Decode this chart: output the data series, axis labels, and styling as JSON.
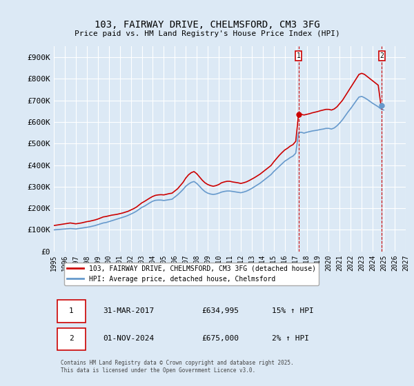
{
  "title": "103, FAIRWAY DRIVE, CHELMSFORD, CM3 3FG",
  "subtitle": "Price paid vs. HM Land Registry's House Price Index (HPI)",
  "background_color": "#dce9f5",
  "plot_bg_color": "#dce9f5",
  "grid_color": "#ffffff",
  "ylabel": "",
  "ylim": [
    0,
    950000
  ],
  "yticks": [
    0,
    100000,
    200000,
    300000,
    400000,
    500000,
    600000,
    700000,
    800000,
    900000
  ],
  "ytick_labels": [
    "£0",
    "£100K",
    "£200K",
    "£300K",
    "£400K",
    "£500K",
    "£600K",
    "£700K",
    "£800K",
    "£900K"
  ],
  "xlim_start": 1995.0,
  "xlim_end": 2027.0,
  "xticks": [
    1995,
    1996,
    1997,
    1998,
    1999,
    2000,
    2001,
    2002,
    2003,
    2004,
    2005,
    2006,
    2007,
    2008,
    2009,
    2010,
    2011,
    2012,
    2013,
    2014,
    2015,
    2016,
    2017,
    2018,
    2019,
    2020,
    2021,
    2022,
    2023,
    2024,
    2025,
    2026,
    2027
  ],
  "red_color": "#cc0000",
  "blue_color": "#6699cc",
  "marker1_year": 2017.25,
  "marker1_value": 634995,
  "marker1_label": "1",
  "marker2_year": 2024.83,
  "marker2_value": 675000,
  "marker2_label": "2",
  "legend1_text": "103, FAIRWAY DRIVE, CHELMSFORD, CM3 3FG (detached house)",
  "legend2_text": "HPI: Average price, detached house, Chelmsford",
  "table_row1": [
    "1",
    "31-MAR-2017",
    "£634,995",
    "15% ↑ HPI"
  ],
  "table_row2": [
    "2",
    "01-NOV-2024",
    "£675,000",
    "2% ↑ HPI"
  ],
  "footer": "Contains HM Land Registry data © Crown copyright and database right 2025.\nThis data is licensed under the Open Government Licence v3.0.",
  "red_x": [
    1995.0,
    1995.25,
    1995.5,
    1995.75,
    1996.0,
    1996.25,
    1996.5,
    1996.75,
    1997.0,
    1997.25,
    1997.5,
    1997.75,
    1998.0,
    1998.25,
    1998.5,
    1998.75,
    1999.0,
    1999.25,
    1999.5,
    1999.75,
    2000.0,
    2000.25,
    2000.5,
    2000.75,
    2001.0,
    2001.25,
    2001.5,
    2001.75,
    2002.0,
    2002.25,
    2002.5,
    2002.75,
    2003.0,
    2003.25,
    2003.5,
    2003.75,
    2004.0,
    2004.25,
    2004.5,
    2004.75,
    2005.0,
    2005.25,
    2005.5,
    2005.75,
    2006.0,
    2006.25,
    2006.5,
    2006.75,
    2007.0,
    2007.25,
    2007.5,
    2007.75,
    2008.0,
    2008.25,
    2008.5,
    2008.75,
    2009.0,
    2009.25,
    2009.5,
    2009.75,
    2010.0,
    2010.25,
    2010.5,
    2010.75,
    2011.0,
    2011.25,
    2011.5,
    2011.75,
    2012.0,
    2012.25,
    2012.5,
    2012.75,
    2013.0,
    2013.25,
    2013.5,
    2013.75,
    2014.0,
    2014.25,
    2014.5,
    2014.75,
    2015.0,
    2015.25,
    2015.5,
    2015.75,
    2016.0,
    2016.25,
    2016.5,
    2016.75,
    2017.0,
    2017.25,
    2017.5,
    2017.75,
    2018.0,
    2018.25,
    2018.5,
    2018.75,
    2019.0,
    2019.25,
    2019.5,
    2019.75,
    2020.0,
    2020.25,
    2020.5,
    2020.75,
    2021.0,
    2021.25,
    2021.5,
    2021.75,
    2022.0,
    2022.25,
    2022.5,
    2022.75,
    2023.0,
    2023.25,
    2023.5,
    2023.75,
    2024.0,
    2024.25,
    2024.5,
    2024.75,
    2025.0
  ],
  "red_y": [
    120000,
    122000,
    124000,
    126000,
    128000,
    130000,
    132000,
    130000,
    128000,
    130000,
    132000,
    135000,
    138000,
    140000,
    143000,
    146000,
    150000,
    155000,
    160000,
    162000,
    165000,
    168000,
    170000,
    172000,
    175000,
    178000,
    182000,
    186000,
    192000,
    198000,
    205000,
    215000,
    225000,
    232000,
    240000,
    248000,
    255000,
    260000,
    262000,
    263000,
    262000,
    265000,
    268000,
    270000,
    280000,
    290000,
    305000,
    320000,
    340000,
    355000,
    365000,
    370000,
    360000,
    345000,
    330000,
    318000,
    310000,
    305000,
    302000,
    305000,
    310000,
    318000,
    322000,
    325000,
    325000,
    322000,
    320000,
    318000,
    315000,
    318000,
    322000,
    328000,
    335000,
    342000,
    350000,
    358000,
    368000,
    378000,
    388000,
    398000,
    415000,
    430000,
    445000,
    458000,
    470000,
    478000,
    488000,
    495000,
    510000,
    634995,
    635000,
    632000,
    635000,
    638000,
    642000,
    645000,
    648000,
    652000,
    655000,
    658000,
    658000,
    655000,
    660000,
    670000,
    685000,
    700000,
    720000,
    740000,
    760000,
    780000,
    800000,
    820000,
    825000,
    820000,
    810000,
    800000,
    790000,
    780000,
    770000,
    675000,
    670000
  ],
  "blue_x": [
    1995.0,
    1995.25,
    1995.5,
    1995.75,
    1996.0,
    1996.25,
    1996.5,
    1996.75,
    1997.0,
    1997.25,
    1997.5,
    1997.75,
    1998.0,
    1998.25,
    1998.5,
    1998.75,
    1999.0,
    1999.25,
    1999.5,
    1999.75,
    2000.0,
    2000.25,
    2000.5,
    2000.75,
    2001.0,
    2001.25,
    2001.5,
    2001.75,
    2002.0,
    2002.25,
    2002.5,
    2002.75,
    2003.0,
    2003.25,
    2003.5,
    2003.75,
    2004.0,
    2004.25,
    2004.5,
    2004.75,
    2005.0,
    2005.25,
    2005.5,
    2005.75,
    2006.0,
    2006.25,
    2006.5,
    2006.75,
    2007.0,
    2007.25,
    2007.5,
    2007.75,
    2008.0,
    2008.25,
    2008.5,
    2008.75,
    2009.0,
    2009.25,
    2009.5,
    2009.75,
    2010.0,
    2010.25,
    2010.5,
    2010.75,
    2011.0,
    2011.25,
    2011.5,
    2011.75,
    2012.0,
    2012.25,
    2012.5,
    2012.75,
    2013.0,
    2013.25,
    2013.5,
    2013.75,
    2014.0,
    2014.25,
    2014.5,
    2014.75,
    2015.0,
    2015.25,
    2015.5,
    2015.75,
    2016.0,
    2016.25,
    2016.5,
    2016.75,
    2017.0,
    2017.25,
    2017.5,
    2017.75,
    2018.0,
    2018.25,
    2018.5,
    2018.75,
    2019.0,
    2019.25,
    2019.5,
    2019.75,
    2020.0,
    2020.25,
    2020.5,
    2020.75,
    2021.0,
    2021.25,
    2021.5,
    2021.75,
    2022.0,
    2022.25,
    2022.5,
    2022.75,
    2023.0,
    2023.25,
    2023.5,
    2023.75,
    2024.0,
    2024.25,
    2024.5,
    2024.75,
    2025.0
  ],
  "blue_y": [
    100000,
    101000,
    102000,
    103000,
    104000,
    105000,
    106000,
    105000,
    104000,
    106000,
    108000,
    110000,
    112000,
    114000,
    117000,
    120000,
    124000,
    128000,
    132000,
    134000,
    138000,
    142000,
    146000,
    150000,
    154000,
    158000,
    162000,
    167000,
    173000,
    179000,
    186000,
    195000,
    204000,
    210000,
    218000,
    226000,
    233000,
    237000,
    238000,
    238000,
    236000,
    238000,
    240000,
    242000,
    252000,
    262000,
    274000,
    287000,
    302000,
    312000,
    320000,
    324000,
    315000,
    302000,
    288000,
    277000,
    270000,
    266000,
    264000,
    266000,
    270000,
    275000,
    278000,
    280000,
    280000,
    278000,
    276000,
    274000,
    272000,
    275000,
    279000,
    285000,
    292000,
    300000,
    308000,
    316000,
    326000,
    336000,
    346000,
    356000,
    370000,
    382000,
    394000,
    406000,
    418000,
    426000,
    435000,
    442000,
    455000,
    550000,
    552000,
    548000,
    552000,
    555000,
    558000,
    560000,
    562000,
    565000,
    567000,
    570000,
    570000,
    567000,
    572000,
    582000,
    595000,
    610000,
    628000,
    646000,
    662000,
    680000,
    698000,
    715000,
    718000,
    712000,
    704000,
    695000,
    686000,
    678000,
    670000,
    660000,
    655000
  ]
}
